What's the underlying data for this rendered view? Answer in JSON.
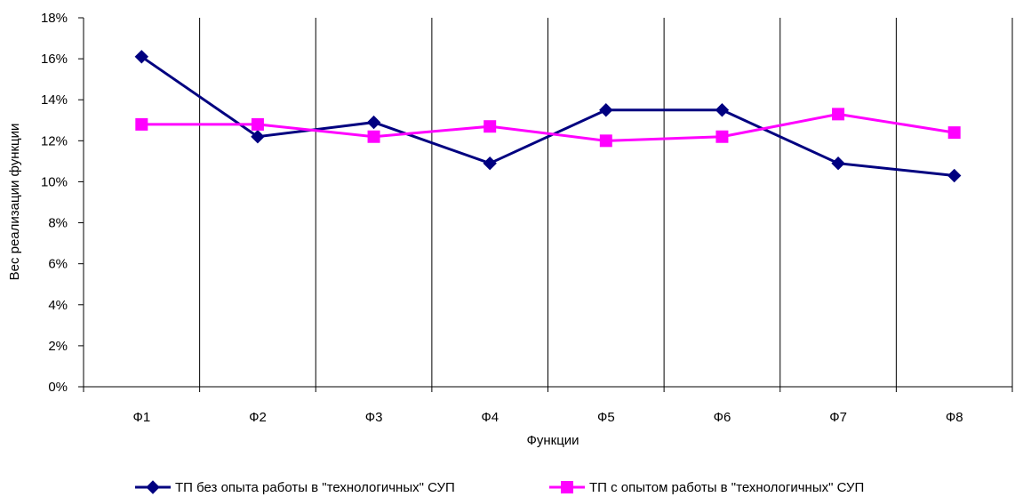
{
  "chart_data": {
    "type": "line",
    "categories": [
      "Ф1",
      "Ф2",
      "Ф3",
      "Ф4",
      "Ф5",
      "Ф6",
      "Ф7",
      "Ф8"
    ],
    "series": [
      {
        "name": "ТП без опыта работы в \"технологичных\" СУП",
        "values": [
          16.1,
          12.2,
          12.9,
          10.9,
          13.5,
          13.5,
          10.9,
          10.3
        ],
        "color": "#000080",
        "marker": "diamond"
      },
      {
        "name": "ТП с опытом работы в \"технологичных\" СУП",
        "values": [
          12.8,
          12.8,
          12.2,
          12.7,
          12.0,
          12.2,
          13.3,
          12.4
        ],
        "color": "#FF00FF",
        "marker": "square"
      }
    ],
    "xlabel": "Функции",
    "ylabel": "Вес реализации функции",
    "ylim": [
      0,
      18
    ],
    "yticks": [
      "0%",
      "2%",
      "4%",
      "6%",
      "8%",
      "10%",
      "12%",
      "14%",
      "16%",
      "18%"
    ],
    "grid": "vertical",
    "legend": "bottom"
  }
}
